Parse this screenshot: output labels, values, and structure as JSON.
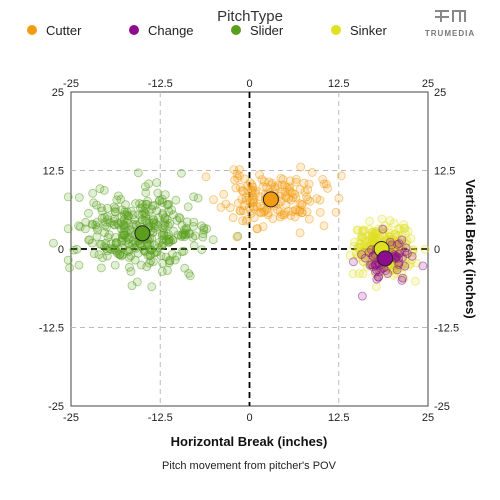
{
  "brand": {
    "name": "TRUMEDIA"
  },
  "chart_data": {
    "type": "scatter",
    "legend_title": "PitchType",
    "legend_position": "top",
    "xlabel": "Horizontal Break (inches)",
    "ylabel": "Vertical Break (inches)",
    "caption": "Pitch movement from pitcher's POV",
    "xlim": [
      -25,
      25
    ],
    "ylim": [
      -25,
      25
    ],
    "ticks": [
      -25,
      -12.5,
      0,
      12.5,
      25
    ],
    "tick_labels": [
      "-25",
      "-12.5",
      "0",
      "12.5",
      "25"
    ],
    "grid": true,
    "series": [
      {
        "name": "Cutter",
        "color": "#f39c12",
        "mean": [
          3,
          7.9
        ],
        "spread": [
          3.4,
          2.1
        ],
        "count": 160,
        "seed": 11
      },
      {
        "name": "Change",
        "color": "#8e0c8e",
        "mean": [
          19,
          -1.5
        ],
        "spread": [
          1.8,
          1.8
        ],
        "count": 70,
        "seed": 29
      },
      {
        "name": "Slider",
        "color": "#5a9e1e",
        "mean": [
          -15,
          2.5
        ],
        "spread": [
          4.2,
          3.2
        ],
        "count": 330,
        "seed": 47
      },
      {
        "name": "Sinker",
        "color": "#e0e020",
        "mean": [
          18.5,
          0
        ],
        "spread": [
          2.1,
          2.1
        ],
        "count": 260,
        "seed": 83
      }
    ]
  }
}
